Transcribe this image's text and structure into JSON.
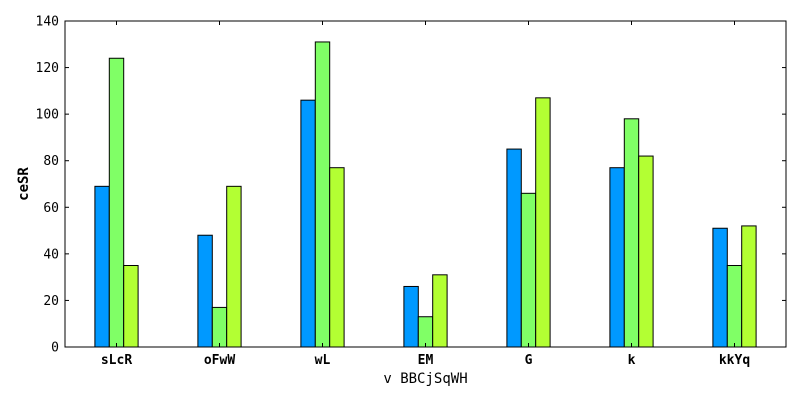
{
  "chart_data": {
    "type": "bar",
    "title": "",
    "xlabel": "v BBCjSqWH",
    "ylabel": "ceSR",
    "ylim": [
      0,
      140
    ],
    "yticks": [
      0,
      20,
      40,
      60,
      80,
      100,
      120,
      140
    ],
    "grid": false,
    "categories": [
      "sLcR",
      "oFwW",
      "wL",
      "EM",
      "G",
      "k",
      "kkYq"
    ],
    "series": [
      {
        "color": "#0099ff",
        "values": [
          69,
          48,
          106,
          26,
          85,
          77,
          51
        ]
      },
      {
        "color": "#80ff66",
        "values": [
          124,
          17,
          131,
          13,
          66,
          98,
          35
        ]
      },
      {
        "color": "#b3ff33",
        "values": [
          35,
          69,
          77,
          31,
          107,
          82,
          52
        ]
      }
    ]
  }
}
